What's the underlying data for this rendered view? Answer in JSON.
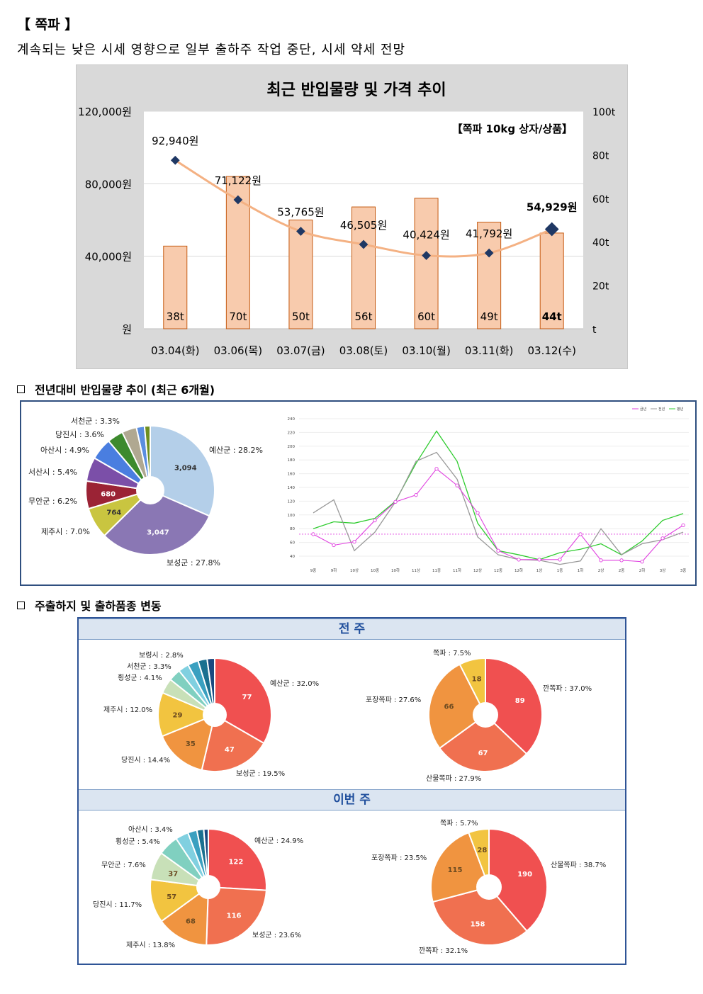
{
  "header": {
    "title": "【 쪽파 】",
    "subtitle": "계속되는 낮은 시세 영향으로 일부 출하주 작업 중단, 시세 약세 전망"
  },
  "sections": {
    "s1": "전년대비 반입물량 추이 (최근 6개월)",
    "s2": "주출하지 및 출하품종 변동",
    "prev_week": "전 주",
    "this_week": "이번 주"
  },
  "chart_data": [
    {
      "type": "bar",
      "title": "최근 반입물량 및 가격 추이",
      "annotation": "【쪽파 10kg 상자/상품】",
      "categories": [
        "03.04(화)",
        "03.06(목)",
        "03.07(금)",
        "03.08(토)",
        "03.10(월)",
        "03.11(화)",
        "03.12(수)"
      ],
      "series": [
        {
          "name": "반입물량",
          "axis": "right",
          "values": [
            38,
            70,
            50,
            56,
            60,
            49,
            44
          ],
          "labels": [
            "38t",
            "70t",
            "50t",
            "56t",
            "60t",
            "49t",
            "44t"
          ],
          "color": "#f8cbad"
        },
        {
          "name": "가격",
          "type": "line",
          "axis": "left",
          "values": [
            92940,
            71122,
            53765,
            46505,
            40424,
            41792,
            54929
          ],
          "labels": [
            "92,940원",
            "71,122원",
            "53,765원",
            "46,505원",
            "40,424원",
            "41,792원",
            "54,929원"
          ],
          "color": "#1f3864",
          "trend_color": "#f4b183"
        }
      ],
      "y_left": {
        "range": [
          0,
          120000
        ],
        "ticks": [
          "원",
          "40,000원",
          "80,000원",
          "120,000원"
        ]
      },
      "y_right": {
        "range": [
          0,
          100
        ],
        "ticks": [
          "t",
          "20t",
          "40t",
          "60t",
          "80t",
          "100t"
        ]
      }
    },
    {
      "type": "pie",
      "slices": [
        {
          "label": "예산군 : 28.2%",
          "value": 3094,
          "inner": "3,094",
          "color": "#b4cfe9"
        },
        {
          "label": "보성군 : 27.8%",
          "value": 3047,
          "inner": "3,047",
          "color": "#8a77b4"
        },
        {
          "label": "제주시 : 7.0%",
          "value": 764,
          "inner": "764",
          "color": "#c9c540"
        },
        {
          "label": "무안군 : 6.2%",
          "value": 680,
          "inner": "680",
          "color": "#9b2335"
        },
        {
          "label": "서산시 : 5.4%",
          "value": 593,
          "inner": "",
          "color": "#7b4fa8"
        },
        {
          "label": "아산시 : 4.9%",
          "value": 538,
          "inner": "",
          "color": "#4a7ee0"
        },
        {
          "label": "당진시 : 3.6%",
          "value": 395,
          "inner": "",
          "color": "#3d8a2e"
        },
        {
          "label": "서천군 : 3.3%",
          "value": 362,
          "inner": "",
          "color": "#b0a891"
        },
        {
          "label": "",
          "value": 200,
          "inner": "",
          "color": "#5b8ee0"
        },
        {
          "label": "",
          "value": 140,
          "inner": "",
          "color": "#6f8f20"
        }
      ]
    },
    {
      "type": "line",
      "legend": [
        "금년",
        "전년",
        "평년"
      ],
      "x": [
        "9중",
        "9하",
        "10상",
        "10중",
        "10하",
        "11상",
        "11중",
        "11하",
        "12상",
        "12중",
        "12하",
        "1상",
        "1중",
        "1하",
        "2상",
        "2중",
        "2하",
        "3상",
        "3중"
      ],
      "ylim": [
        40,
        240
      ],
      "yticks": [
        40,
        60,
        80,
        100,
        120,
        140,
        160,
        180,
        200,
        220,
        240
      ],
      "series": [
        {
          "name": "금년",
          "color": "#e040e0",
          "values": [
            72,
            56,
            61,
            92,
            119,
            129,
            167,
            143,
            103,
            48,
            35,
            35,
            35,
            72,
            34,
            34,
            32,
            66,
            85
          ]
        },
        {
          "name": "전년",
          "color": "#999999",
          "values": [
            103,
            122,
            48,
            75,
            119,
            178,
            191,
            152,
            68,
            42,
            35,
            34,
            28,
            33,
            80,
            42,
            58,
            64,
            75
          ]
        },
        {
          "name": "평년",
          "color": "#30cc30",
          "values": [
            80,
            90,
            88,
            95,
            120,
            175,
            222,
            178,
            88,
            48,
            42,
            35,
            45,
            50,
            58,
            42,
            62,
            92,
            102
          ]
        }
      ],
      "reference": 72
    },
    {
      "type": "pie",
      "slices": [
        {
          "label": "예산군 : 32.0%",
          "value": 77,
          "inner": "77",
          "color": "#f05050"
        },
        {
          "label": "보성군 : 19.5%",
          "value": 47,
          "inner": "47",
          "color": "#f07050"
        },
        {
          "label": "당진시 : 14.4%",
          "value": 35,
          "inner": "35",
          "color": "#f09440"
        },
        {
          "label": "제주시 : 12.0%",
          "value": 29,
          "inner": "29",
          "color": "#f2c440"
        },
        {
          "label": "횡성군 : 4.1%",
          "value": 10,
          "inner": "",
          "color": "#c8e0b8"
        },
        {
          "label": "서천군 : 3.3%",
          "value": 8,
          "inner": "",
          "color": "#80d0c0"
        },
        {
          "label": "보령시 : 2.8%",
          "value": 7,
          "inner": "",
          "color": "#80d0e0"
        },
        {
          "label": "",
          "value": 7,
          "inner": "",
          "color": "#3aa0c0"
        },
        {
          "label": "",
          "value": 6,
          "inner": "",
          "color": "#1a7090"
        },
        {
          "label": "",
          "value": 5,
          "inner": "",
          "color": "#1a4a80"
        }
      ]
    },
    {
      "type": "pie",
      "slices": [
        {
          "label": "깐쪽파 : 37.0%",
          "value": 89,
          "inner": "89",
          "color": "#f05050"
        },
        {
          "label": "산물쪽파 : 27.9%",
          "value": 67,
          "inner": "67",
          "color": "#f07050"
        },
        {
          "label": "포장쪽파 : 27.6%",
          "value": 66,
          "inner": "66",
          "color": "#f09440"
        },
        {
          "label": "쪽파 : 7.5%",
          "value": 18,
          "inner": "18",
          "color": "#f2c440"
        }
      ]
    },
    {
      "type": "pie",
      "slices": [
        {
          "label": "예산군 : 24.9%",
          "value": 122,
          "inner": "122",
          "color": "#f05050"
        },
        {
          "label": "보성군 : 23.6%",
          "value": 116,
          "inner": "116",
          "color": "#f07050"
        },
        {
          "label": "제주시 : 13.8%",
          "value": 68,
          "inner": "68",
          "color": "#f09440"
        },
        {
          "label": "당진시 : 11.7%",
          "value": 57,
          "inner": "57",
          "color": "#f2c440"
        },
        {
          "label": "무안군 : 7.6%",
          "value": 37,
          "inner": "37",
          "color": "#c8e0b8"
        },
        {
          "label": "횡성군 : 5.4%",
          "value": 27,
          "inner": "",
          "color": "#80d0c0"
        },
        {
          "label": "아산시 : 3.4%",
          "value": 17,
          "inner": "",
          "color": "#80d0e0"
        },
        {
          "label": "",
          "value": 12,
          "inner": "",
          "color": "#3aa0c0"
        },
        {
          "label": "",
          "value": 9,
          "inner": "",
          "color": "#1a7090"
        },
        {
          "label": "",
          "value": 6,
          "inner": "",
          "color": "#1a4a80"
        }
      ]
    },
    {
      "type": "pie",
      "slices": [
        {
          "label": "산물쪽파 : 38.7%",
          "value": 190,
          "inner": "190",
          "color": "#f05050"
        },
        {
          "label": "깐쪽파 : 32.1%",
          "value": 158,
          "inner": "158",
          "color": "#f07050"
        },
        {
          "label": "포장쪽파 : 23.5%",
          "value": 115,
          "inner": "115",
          "color": "#f09440"
        },
        {
          "label": "쪽파 : 5.7%",
          "value": 28,
          "inner": "28",
          "color": "#f2c440"
        }
      ]
    }
  ]
}
